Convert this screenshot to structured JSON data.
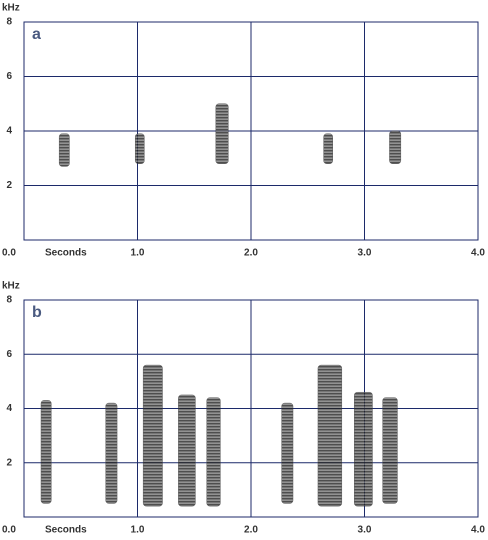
{
  "chart_data": [
    {
      "type": "spectrogram",
      "label": "a",
      "y_label": "kHz",
      "x_label": "Seconds",
      "xlim": [
        0,
        4
      ],
      "xticks": [
        {
          "value": 0,
          "label": "0.0"
        },
        {
          "value": 1,
          "label": "1.0"
        },
        {
          "value": 2,
          "label": "2.0"
        },
        {
          "value": 3,
          "label": "3.0"
        },
        {
          "value": 4,
          "label": "4.0"
        }
      ],
      "ylim": [
        0,
        8
      ],
      "yticks": [
        2,
        4,
        6,
        8
      ],
      "grid": true,
      "color": "#333333",
      "notes": [
        {
          "start": 0.31,
          "end": 0.4,
          "low": 2.7,
          "high": 3.9
        },
        {
          "start": 0.98,
          "end": 1.06,
          "low": 2.8,
          "high": 3.9
        },
        {
          "start": 1.69,
          "end": 1.8,
          "low": 2.8,
          "high": 5.0
        },
        {
          "start": 2.64,
          "end": 2.72,
          "low": 2.8,
          "high": 3.9
        },
        {
          "start": 3.22,
          "end": 3.32,
          "low": 2.8,
          "high": 4.0
        }
      ]
    },
    {
      "type": "spectrogram",
      "label": "b",
      "y_label": "kHz",
      "x_label": "Seconds",
      "xlim": [
        0,
        4
      ],
      "xticks": [
        {
          "value": 0,
          "label": "0.0"
        },
        {
          "value": 1,
          "label": "1.0"
        },
        {
          "value": 2,
          "label": "2.0"
        },
        {
          "value": 3,
          "label": "3.0"
        },
        {
          "value": 4,
          "label": "4.0"
        }
      ],
      "ylim": [
        0,
        8
      ],
      "yticks": [
        2,
        4,
        6,
        8
      ],
      "grid": true,
      "color": "#333333",
      "notes": [
        {
          "start": 0.15,
          "end": 0.24,
          "low": 0.5,
          "high": 4.3
        },
        {
          "start": 0.72,
          "end": 0.82,
          "low": 0.5,
          "high": 4.2
        },
        {
          "start": 1.05,
          "end": 1.22,
          "low": 0.4,
          "high": 5.6
        },
        {
          "start": 1.36,
          "end": 1.51,
          "low": 0.4,
          "high": 4.5
        },
        {
          "start": 1.61,
          "end": 1.73,
          "low": 0.4,
          "high": 4.4
        },
        {
          "start": 2.27,
          "end": 2.37,
          "low": 0.5,
          "high": 4.2
        },
        {
          "start": 2.59,
          "end": 2.8,
          "low": 0.4,
          "high": 5.6
        },
        {
          "start": 2.91,
          "end": 3.07,
          "low": 0.4,
          "high": 4.6
        },
        {
          "start": 3.16,
          "end": 3.29,
          "low": 0.5,
          "high": 4.4
        }
      ]
    }
  ]
}
